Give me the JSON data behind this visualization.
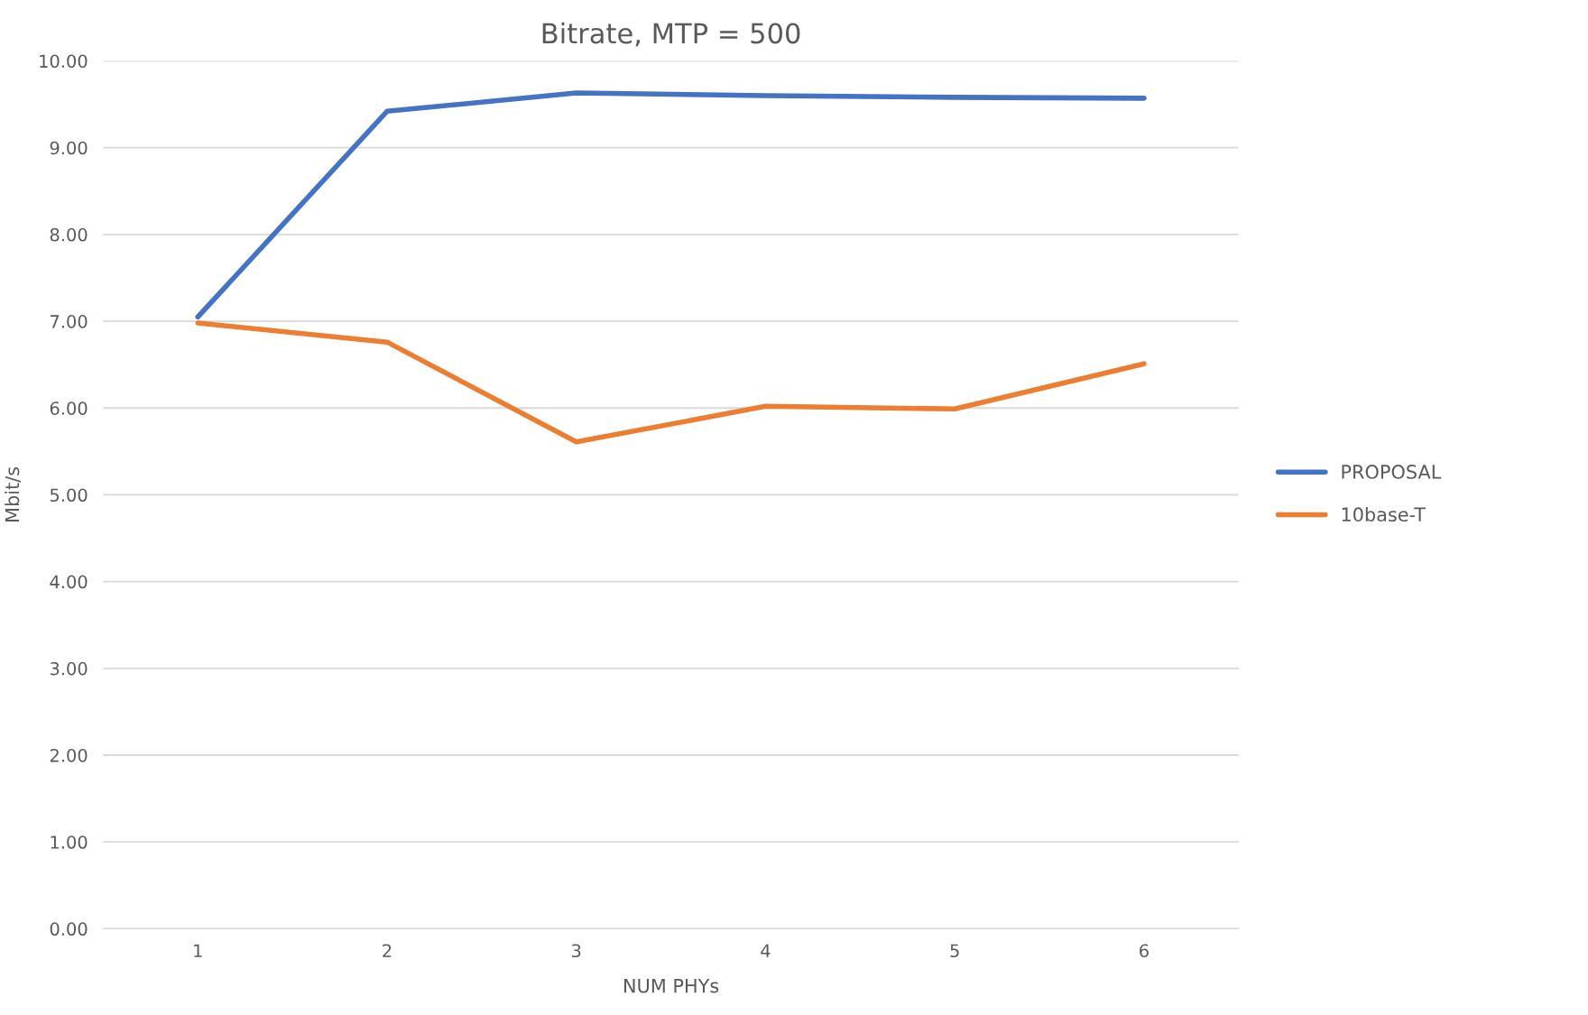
{
  "chart_data": {
    "type": "line",
    "title": "Bitrate, MTP = 500",
    "xlabel": "NUM PHYs",
    "ylabel": "Mbit/s",
    "categories": [
      "1",
      "2",
      "3",
      "4",
      "5",
      "6"
    ],
    "series": [
      {
        "name": "PROPOSAL",
        "color": "#4472c4",
        "values": [
          7.05,
          9.42,
          9.63,
          9.6,
          9.58,
          9.57
        ]
      },
      {
        "name": "10base-T",
        "color": "#ed7d31",
        "values": [
          6.98,
          6.76,
          5.61,
          6.02,
          5.99,
          6.51
        ]
      }
    ],
    "ylim": [
      0,
      10
    ],
    "yticks": [
      {
        "value": 0,
        "label": "0.00"
      },
      {
        "value": 1,
        "label": "1.00"
      },
      {
        "value": 2,
        "label": "2.00"
      },
      {
        "value": 3,
        "label": "3.00"
      },
      {
        "value": 4,
        "label": "4.00"
      },
      {
        "value": 5,
        "label": "5.00"
      },
      {
        "value": 6,
        "label": "6.00"
      },
      {
        "value": 7,
        "label": "7.00"
      },
      {
        "value": 8,
        "label": "8.00"
      },
      {
        "value": 9,
        "label": "9.00"
      },
      {
        "value": 10,
        "label": "10.00"
      }
    ],
    "grid": "y",
    "legend": "right",
    "marker": "none",
    "line_style": "solid"
  }
}
